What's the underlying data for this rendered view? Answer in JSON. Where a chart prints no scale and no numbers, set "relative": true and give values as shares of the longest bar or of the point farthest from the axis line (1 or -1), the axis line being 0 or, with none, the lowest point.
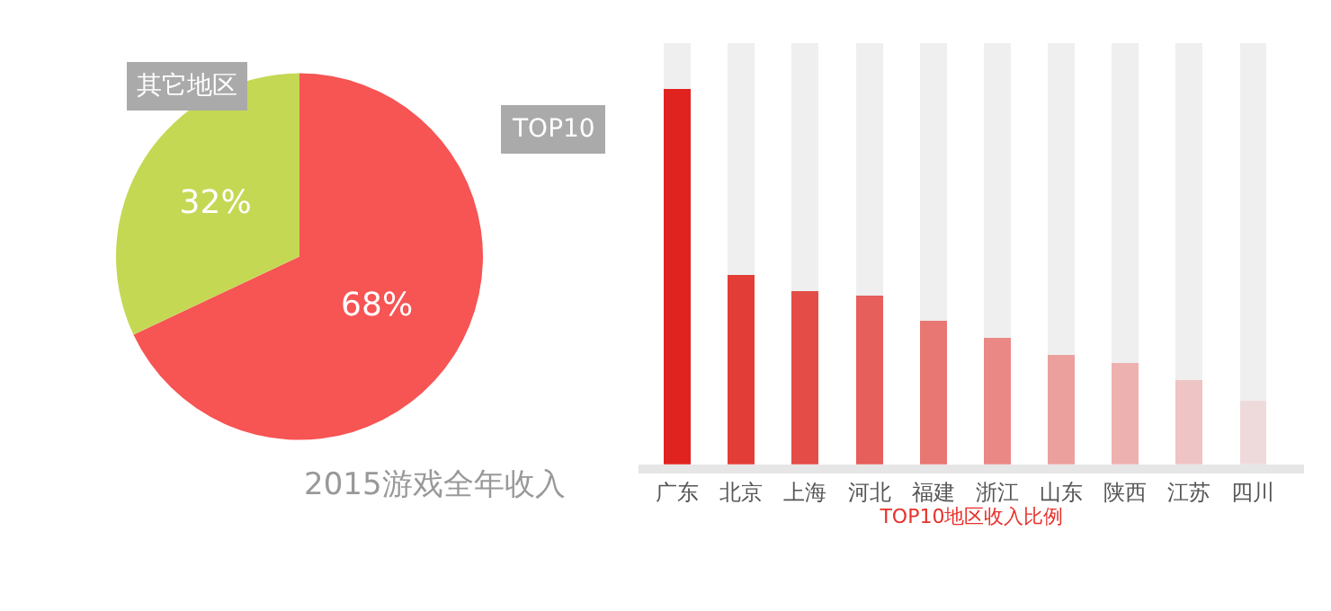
{
  "chart_data": [
    {
      "type": "pie",
      "title": "2015游戏全年收入",
      "categories": [
        "TOP10",
        "其它地区"
      ],
      "values": [
        68,
        32
      ],
      "colors": [
        "#f75454",
        "#c5d854"
      ],
      "value_labels": [
        "68%",
        "32%"
      ]
    },
    {
      "type": "bar",
      "xlabel": "TOP10地区收入比例",
      "relative": true,
      "stacked": true,
      "categories": [
        "广东",
        "北京",
        "上海",
        "河北",
        "福建",
        "浙江",
        "山东",
        "陕西",
        "江苏",
        "四川"
      ],
      "series": [
        {
          "colors": [
            "#e0231f",
            "#e23e37",
            "#e44d47",
            "#e65f5a",
            "#e87672",
            "#ea8885",
            "#eca09e",
            "#edb1b0",
            "#eec4c4",
            "#efdadb"
          ],
          "values": [
            0.89,
            0.45,
            0.41,
            0.4,
            0.34,
            0.3,
            0.26,
            0.24,
            0.2,
            0.15
          ]
        },
        {
          "color": "#efefef",
          "values": [
            0.11,
            0.55,
            0.59,
            0.6,
            0.66,
            0.7,
            0.74,
            0.76,
            0.8,
            0.85
          ]
        }
      ]
    }
  ]
}
